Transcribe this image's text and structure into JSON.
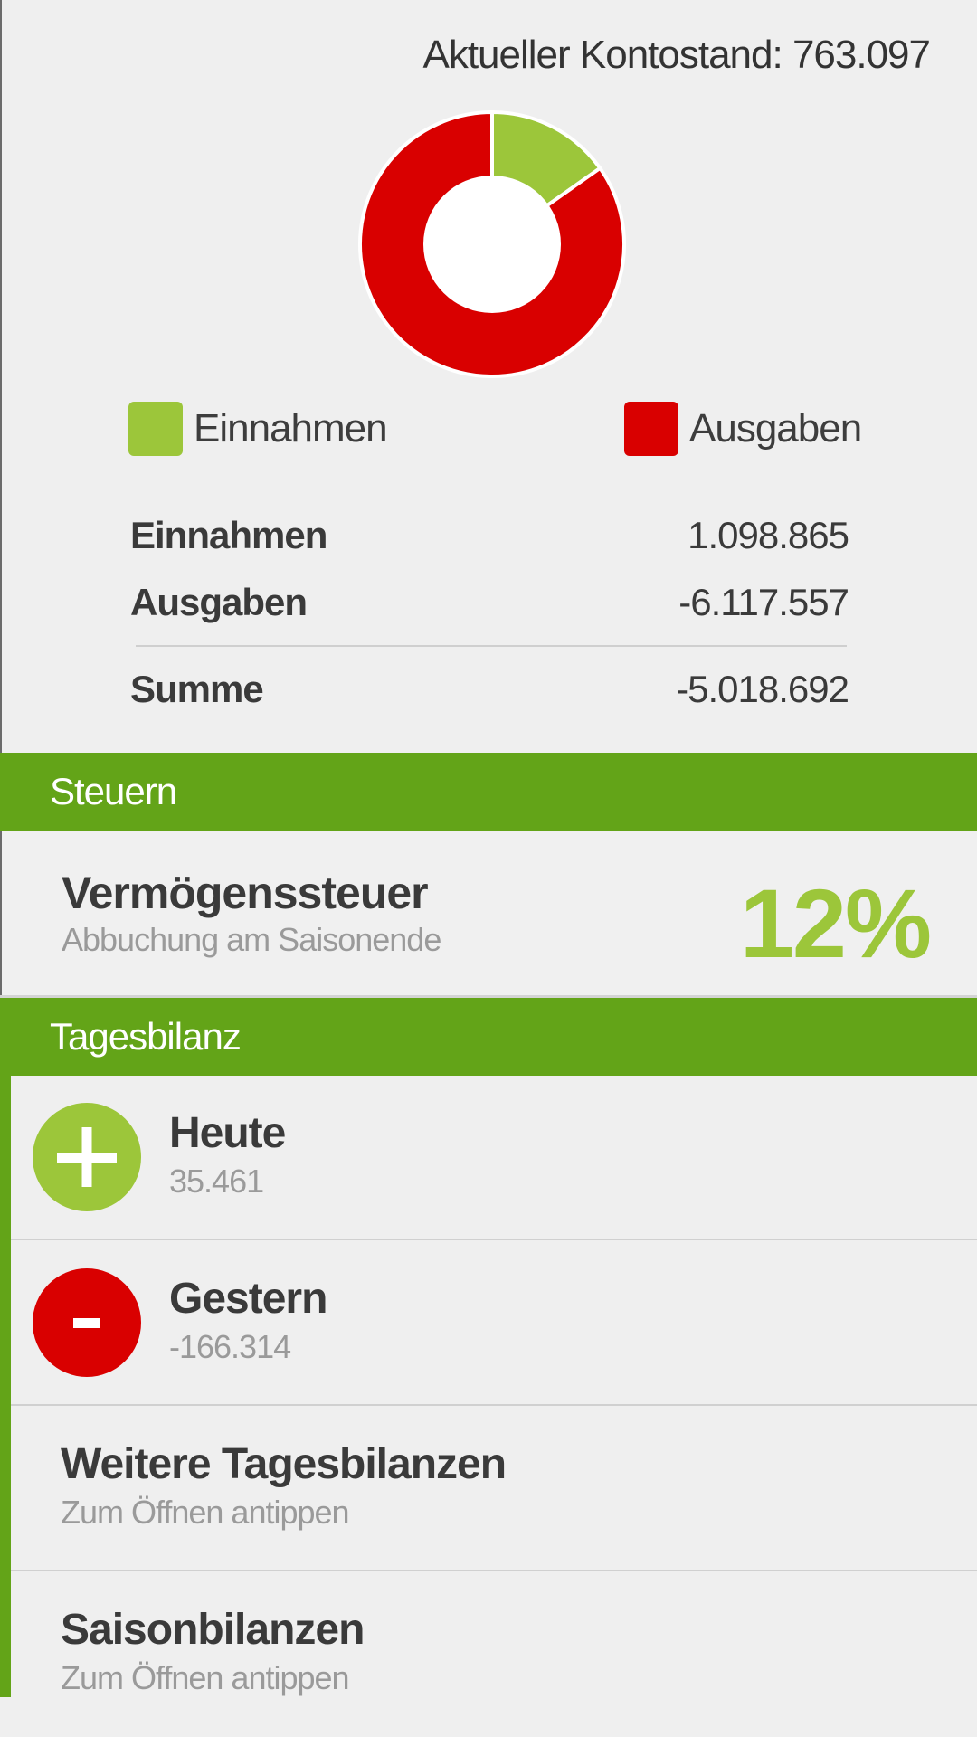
{
  "summary": {
    "balance_label": "Aktueller Kontostand: 763.097",
    "chart_data": {
      "type": "pie",
      "categories": [
        "Einnahmen",
        "Ausgaben"
      ],
      "values": [
        1098865,
        6117557
      ],
      "colors": [
        "#9cc63a",
        "#d90000"
      ],
      "legend": "bottom"
    },
    "legend": {
      "income": "Einnahmen",
      "expenses": "Ausgaben"
    },
    "rows": {
      "income_label": "Einnahmen",
      "income_value": "1.098.865",
      "expenses_label": "Ausgaben",
      "expenses_value": "-6.117.557",
      "sum_label": "Summe",
      "sum_value": "-5.018.692"
    }
  },
  "taxes": {
    "header": "Steuern",
    "title": "Vermögenssteuer",
    "subtitle": "Abbuchung am Saisonende",
    "percent": "12%"
  },
  "daily": {
    "header": "Tagesbilanz",
    "items": [
      {
        "title": "Heute",
        "subtitle": "35.461",
        "icon": "plus-icon",
        "color": "#9cc63a"
      },
      {
        "title": "Gestern",
        "subtitle": "-166.314",
        "icon": "minus-icon",
        "color": "#d90000"
      },
      {
        "title": "Weitere Tagesbilanzen",
        "subtitle": "Zum Öffnen antippen"
      },
      {
        "title": "Saisonbilanzen",
        "subtitle": "Zum Öffnen antippen"
      }
    ]
  }
}
